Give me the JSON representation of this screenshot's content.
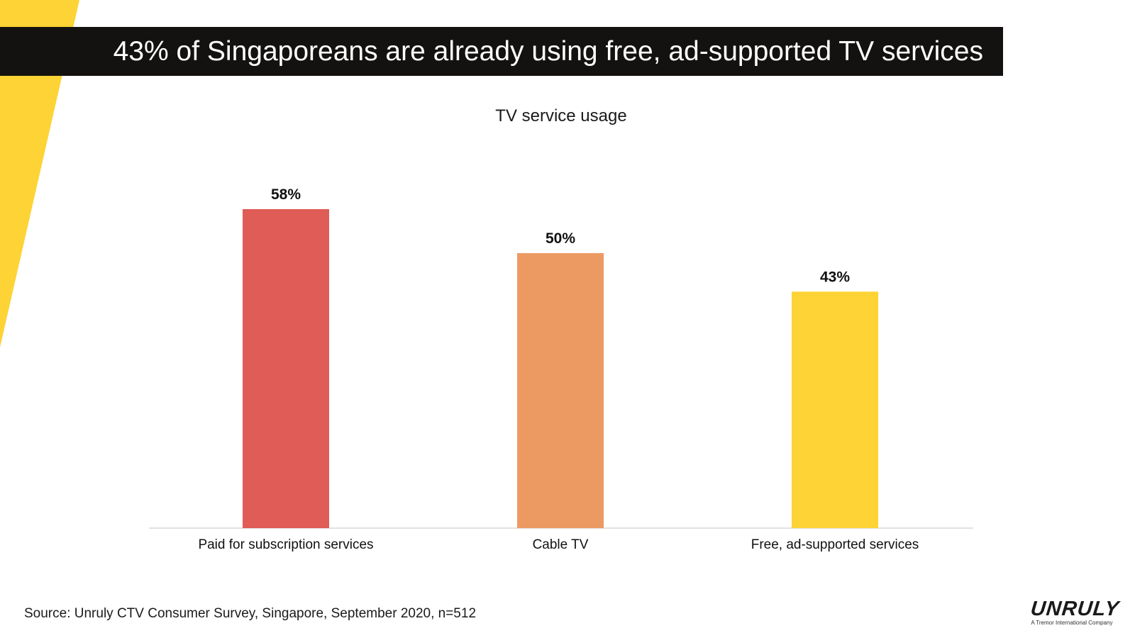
{
  "header": {
    "title": "43% of Singaporeans are already using free, ad-supported TV services"
  },
  "colors": {
    "title_bar": "#141210",
    "accent_yellow": "#FDD335",
    "axis_line": "#d9d9d9"
  },
  "chart_data": {
    "type": "bar",
    "title": "TV service usage",
    "categories": [
      "Paid for subscription services",
      "Cable TV",
      "Free, ad-supported services"
    ],
    "values": [
      58,
      50,
      43
    ],
    "value_labels": [
      "58%",
      "50%",
      "43%"
    ],
    "colors": [
      "#E05C57",
      "#EC9A62",
      "#FDD335"
    ],
    "unit": "%",
    "ylim": [
      0,
      58
    ],
    "grid": false,
    "legend": "none",
    "xlabel": "",
    "ylabel": ""
  },
  "footer": {
    "source": "Source: Unruly CTV Consumer Survey, Singapore, September 2020, n=512",
    "logo_word": "UNRULY",
    "logo_tagline": "A Tremor International Company"
  }
}
